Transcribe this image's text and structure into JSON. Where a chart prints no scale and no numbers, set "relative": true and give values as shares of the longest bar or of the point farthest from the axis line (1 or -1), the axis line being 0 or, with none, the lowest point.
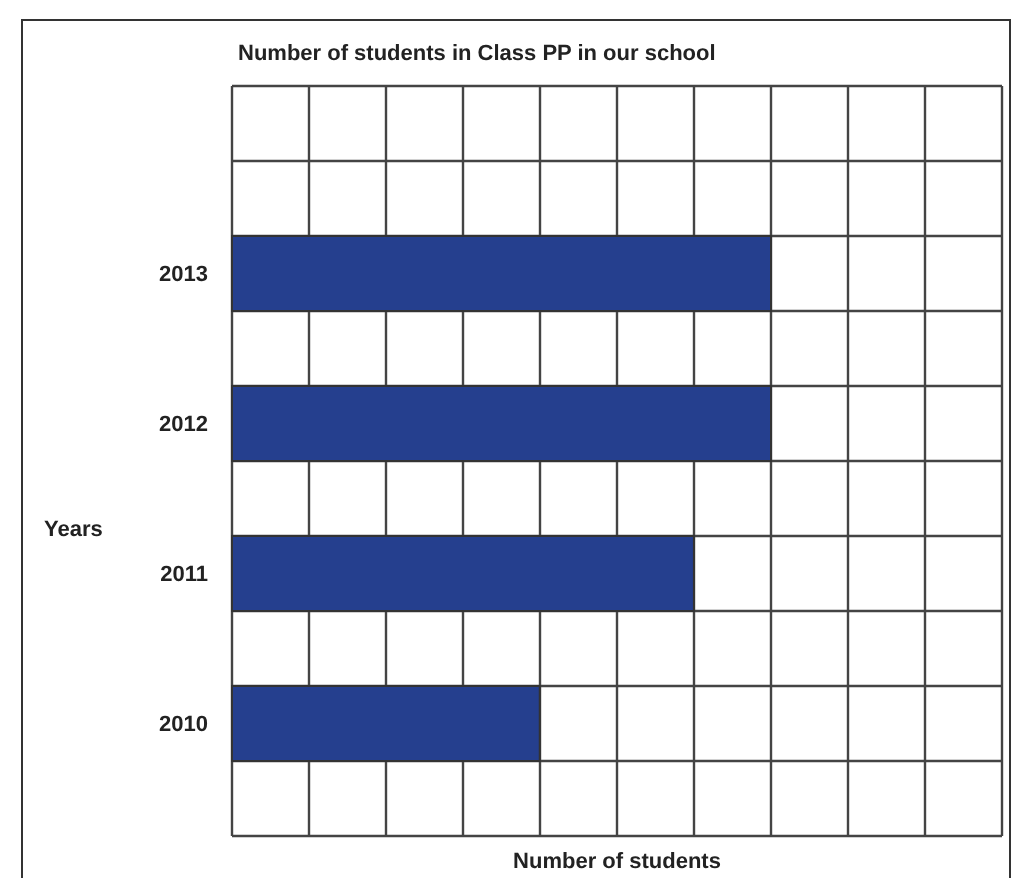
{
  "chart_data": {
    "type": "bar",
    "orientation": "horizontal",
    "relative": true,
    "title": "Number of students in Class PP in our school",
    "xlabel": "Number of students",
    "ylabel": "Years",
    "categories": [
      null,
      null,
      "2013",
      null,
      "2012",
      null,
      "2011",
      null,
      "2010",
      null
    ],
    "series": [
      {
        "color": "#253f8e",
        "values": [
          null,
          null,
          1,
          null,
          1,
          null,
          0.857,
          null,
          0.571,
          null
        ]
      }
    ],
    "grid": true
  }
}
